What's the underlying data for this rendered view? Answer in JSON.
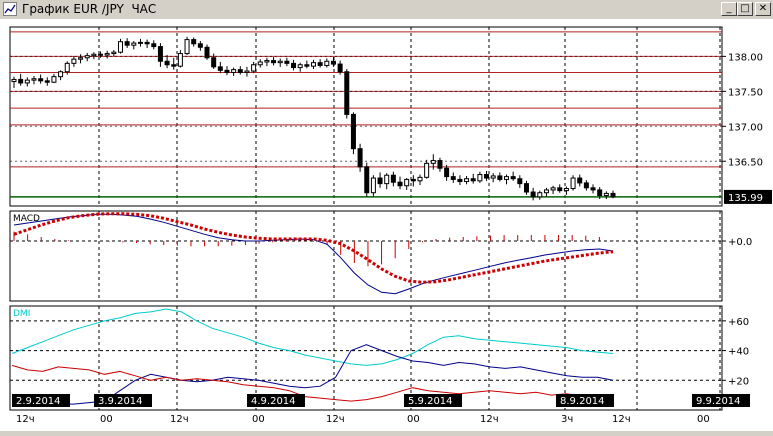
{
  "window": {
    "title": "График EUR /JPY  ЧАС",
    "minimize_label": "_",
    "maximize_label": "□",
    "close_label": "✕"
  },
  "colors": {
    "background": "#ffffff",
    "grid": "#000000",
    "resistance_lines": "#b22222",
    "current_price_line": "#006400",
    "candle": "#000000",
    "macd_line": "#00008b",
    "macd_signal": "#cc0000",
    "macd_histogram": "#cc0000",
    "dmi_plus": "#00cccc",
    "dmi_di_blue": "#00008b",
    "dmi_di_red": "#cc0000",
    "price_label_bg": "#000000",
    "price_label_fg": "#ffffff"
  },
  "price_panel": {
    "y_ticks": [
      "138.00",
      "137.50",
      "137.00",
      "136.50"
    ],
    "current_price": "135.99"
  },
  "macd_panel": {
    "label": "MACD",
    "y_ticks": [
      "+0.0"
    ]
  },
  "dmi_panel": {
    "label": "DMI",
    "y_ticks": [
      "+60",
      "+40",
      "+20"
    ]
  },
  "x_axis": {
    "dates": [
      "2.9.2014",
      "3.9.2014",
      "4.9.2014",
      "5.9.2014",
      "8.9.2014",
      "9.9.2014"
    ],
    "hours": [
      "12ч",
      "00",
      "12ч",
      "00",
      "12ч",
      "00",
      "12ч",
      "3ч",
      "12ч",
      "00"
    ]
  },
  "chart_data": [
    {
      "type": "candlestick",
      "title": "",
      "ylabel": "",
      "ylim": [
        135.86,
        138.42
      ],
      "horizontal_levels": [
        138.35,
        138.0,
        137.77,
        137.5,
        137.26,
        137.02,
        136.42
      ],
      "current_price": 135.99,
      "candles": [
        [
          137.64,
          137.71,
          137.55,
          137.67
        ],
        [
          137.67,
          137.75,
          137.58,
          137.62
        ],
        [
          137.62,
          137.7,
          137.57,
          137.66
        ],
        [
          137.66,
          137.72,
          137.6,
          137.68
        ],
        [
          137.68,
          137.74,
          137.61,
          137.65
        ],
        [
          137.65,
          137.7,
          137.58,
          137.63
        ],
        [
          137.63,
          137.75,
          137.62,
          137.71
        ],
        [
          137.71,
          137.8,
          137.66,
          137.78
        ],
        [
          137.78,
          137.93,
          137.74,
          137.9
        ],
        [
          137.9,
          138.0,
          137.85,
          137.96
        ],
        [
          137.96,
          138.03,
          137.9,
          137.98
        ],
        [
          137.98,
          138.05,
          137.93,
          138.01
        ],
        [
          138.01,
          138.06,
          137.96,
          138.03
        ],
        [
          138.03,
          138.07,
          137.98,
          138.02
        ],
        [
          138.02,
          138.08,
          137.97,
          138.04
        ],
        [
          138.04,
          138.09,
          138.0,
          138.06
        ],
        [
          138.06,
          138.25,
          138.04,
          138.21
        ],
        [
          138.21,
          138.26,
          138.12,
          138.16
        ],
        [
          138.16,
          138.22,
          138.1,
          138.19
        ],
        [
          138.19,
          138.25,
          138.14,
          138.2
        ],
        [
          138.2,
          138.24,
          138.12,
          138.18
        ],
        [
          138.18,
          138.23,
          138.1,
          138.14
        ],
        [
          138.14,
          138.19,
          137.85,
          137.93
        ],
        [
          137.93,
          138.02,
          137.83,
          137.88
        ],
        [
          137.88,
          137.98,
          137.81,
          137.86
        ],
        [
          137.86,
          138.09,
          137.84,
          138.04
        ],
        [
          138.04,
          138.28,
          138.02,
          138.24
        ],
        [
          138.24,
          138.27,
          138.14,
          138.18
        ],
        [
          138.18,
          138.22,
          138.08,
          138.13
        ],
        [
          138.13,
          138.17,
          137.95,
          137.98
        ],
        [
          137.98,
          138.04,
          137.82,
          137.85
        ],
        [
          137.85,
          137.92,
          137.76,
          137.8
        ],
        [
          137.8,
          137.86,
          137.73,
          137.77
        ],
        [
          137.77,
          137.84,
          137.72,
          137.81
        ],
        [
          137.81,
          137.86,
          137.74,
          137.77
        ],
        [
          137.77,
          137.85,
          137.71,
          137.79
        ],
        [
          137.79,
          137.92,
          137.76,
          137.88
        ],
        [
          137.88,
          137.96,
          137.84,
          137.92
        ],
        [
          137.92,
          137.98,
          137.86,
          137.94
        ],
        [
          137.94,
          137.99,
          137.87,
          137.91
        ],
        [
          137.91,
          137.97,
          137.85,
          137.93
        ],
        [
          137.93,
          137.98,
          137.86,
          137.9
        ],
        [
          137.9,
          137.95,
          137.8,
          137.84
        ],
        [
          137.84,
          137.91,
          137.78,
          137.88
        ],
        [
          137.88,
          137.94,
          137.83,
          137.86
        ],
        [
          137.86,
          137.95,
          137.82,
          137.91
        ],
        [
          137.91,
          137.96,
          137.84,
          137.87
        ],
        [
          137.87,
          137.97,
          137.84,
          137.93
        ],
        [
          137.93,
          137.99,
          137.85,
          137.89
        ],
        [
          137.89,
          137.94,
          137.74,
          137.78
        ],
        [
          137.78,
          137.82,
          137.11,
          137.17
        ],
        [
          137.17,
          137.2,
          136.6,
          136.68
        ],
        [
          136.68,
          136.75,
          136.35,
          136.42
        ],
        [
          136.42,
          136.48,
          135.99,
          136.05
        ],
        [
          136.05,
          136.3,
          135.99,
          136.26
        ],
        [
          136.26,
          136.34,
          136.12,
          136.18
        ],
        [
          136.18,
          136.33,
          136.1,
          136.3
        ],
        [
          136.3,
          136.35,
          136.14,
          136.2
        ],
        [
          136.2,
          136.28,
          136.1,
          136.15
        ],
        [
          136.15,
          136.26,
          136.09,
          136.24
        ],
        [
          136.24,
          136.3,
          136.14,
          136.22
        ],
        [
          136.22,
          136.31,
          136.16,
          136.27
        ],
        [
          136.27,
          136.52,
          136.25,
          136.47
        ],
        [
          136.47,
          136.6,
          136.38,
          136.51
        ],
        [
          136.51,
          136.55,
          136.35,
          136.4
        ],
        [
          136.4,
          136.45,
          136.22,
          136.28
        ],
        [
          136.28,
          136.34,
          136.19,
          136.24
        ],
        [
          136.24,
          136.3,
          136.16,
          136.21
        ],
        [
          136.21,
          136.29,
          136.17,
          136.25
        ],
        [
          136.25,
          136.32,
          136.18,
          136.22
        ],
        [
          136.22,
          136.35,
          136.19,
          136.31
        ],
        [
          136.31,
          136.36,
          136.22,
          136.26
        ],
        [
          136.26,
          136.33,
          136.2,
          136.29
        ],
        [
          136.29,
          136.34,
          136.21,
          136.24
        ],
        [
          136.24,
          136.31,
          136.17,
          136.28
        ],
        [
          136.28,
          136.35,
          136.22,
          136.25
        ],
        [
          136.25,
          136.3,
          136.12,
          136.18
        ],
        [
          136.18,
          136.22,
          136.02,
          136.06
        ],
        [
          136.06,
          136.12,
          135.94,
          135.99
        ],
        [
          135.99,
          136.08,
          135.95,
          136.05
        ],
        [
          136.05,
          136.12,
          135.99,
          136.09
        ],
        [
          136.09,
          136.15,
          136.03,
          136.12
        ],
        [
          136.12,
          136.17,
          136.05,
          136.08
        ],
        [
          136.08,
          136.14,
          136.02,
          136.11
        ],
        [
          136.11,
          136.3,
          136.08,
          136.26
        ],
        [
          136.26,
          136.31,
          136.14,
          136.19
        ],
        [
          136.19,
          136.23,
          136.08,
          136.12
        ],
        [
          136.12,
          136.17,
          136.04,
          136.09
        ],
        [
          136.09,
          136.13,
          135.96,
          136.01
        ],
        [
          136.01,
          136.07,
          135.96,
          136.04
        ],
        [
          136.04,
          136.08,
          135.97,
          135.99
        ]
      ]
    },
    {
      "type": "line",
      "title": "",
      "ylim": [
        -0.9,
        0.45
      ],
      "series": [
        {
          "values": [
            0.24,
            0.27,
            0.3,
            0.33,
            0.36,
            0.38,
            0.4,
            0.4,
            0.39,
            0.37,
            0.33,
            0.28,
            0.22,
            0.16,
            0.1,
            0.05,
            0.02,
            0.0,
            0.0,
            0.01,
            0.02,
            0.03,
            0.02,
            -0.05,
            -0.25,
            -0.48,
            -0.66,
            -0.77,
            -0.79,
            -0.72,
            -0.64,
            -0.58,
            -0.53,
            -0.48,
            -0.43,
            -0.38,
            -0.33,
            -0.29,
            -0.25,
            -0.21,
            -0.18,
            -0.15,
            -0.13,
            -0.12,
            -0.15
          ]
        },
        {
          "values": [
            0.1,
            0.17,
            0.24,
            0.3,
            0.35,
            0.38,
            0.4,
            0.41,
            0.41,
            0.4,
            0.38,
            0.34,
            0.29,
            0.24,
            0.18,
            0.13,
            0.09,
            0.06,
            0.04,
            0.03,
            0.03,
            0.03,
            0.03,
            0.01,
            -0.04,
            -0.15,
            -0.28,
            -0.42,
            -0.53,
            -0.6,
            -0.62,
            -0.61,
            -0.58,
            -0.54,
            -0.5,
            -0.46,
            -0.42,
            -0.38,
            -0.34,
            -0.3,
            -0.27,
            -0.24,
            -0.21,
            -0.18,
            -0.16
          ]
        },
        {
          "values": [
            0.14,
            0.1,
            0.06,
            0.03,
            0.01,
            0.0,
            0.0,
            -0.01,
            -0.02,
            -0.03,
            -0.05,
            -0.06,
            -0.07,
            -0.08,
            -0.08,
            -0.08,
            -0.07,
            -0.06,
            -0.04,
            -0.02,
            -0.01,
            0.0,
            -0.01,
            -0.06,
            -0.21,
            -0.33,
            -0.38,
            -0.35,
            -0.26,
            -0.12,
            -0.02,
            0.03,
            0.05,
            0.06,
            0.07,
            0.08,
            0.09,
            0.09,
            0.09,
            0.09,
            0.09,
            0.09,
            0.08,
            0.06,
            0.01
          ]
        }
      ]
    },
    {
      "type": "line",
      "title": "",
      "ylim": [
        0,
        70
      ],
      "series": [
        {
          "values": [
            38,
            42,
            46,
            50,
            54,
            57,
            60,
            62,
            65,
            66,
            68,
            66,
            60,
            55,
            52,
            49,
            45,
            42,
            40,
            37,
            35,
            33,
            31,
            30,
            31,
            34,
            38,
            44,
            49,
            50,
            48,
            47,
            46,
            45,
            44,
            43,
            42,
            40,
            39,
            38
          ]
        },
        {
          "values": [
            5,
            5,
            5,
            4,
            4,
            5,
            6,
            13,
            20,
            24,
            22,
            20,
            19,
            20,
            22,
            21,
            20,
            18,
            16,
            15,
            16,
            22,
            40,
            44,
            40,
            36,
            33,
            32,
            30,
            32,
            31,
            29,
            28,
            29,
            27,
            25,
            23,
            22,
            22,
            20
          ]
        },
        {
          "values": [
            30,
            27,
            26,
            29,
            28,
            27,
            24,
            26,
            23,
            20,
            22,
            20,
            21,
            20,
            19,
            17,
            16,
            15,
            13,
            9,
            8,
            7,
            6,
            7,
            9,
            12,
            15,
            13,
            12,
            11,
            12,
            13,
            12,
            11,
            12,
            10,
            11,
            9,
            10,
            10
          ]
        }
      ]
    }
  ]
}
